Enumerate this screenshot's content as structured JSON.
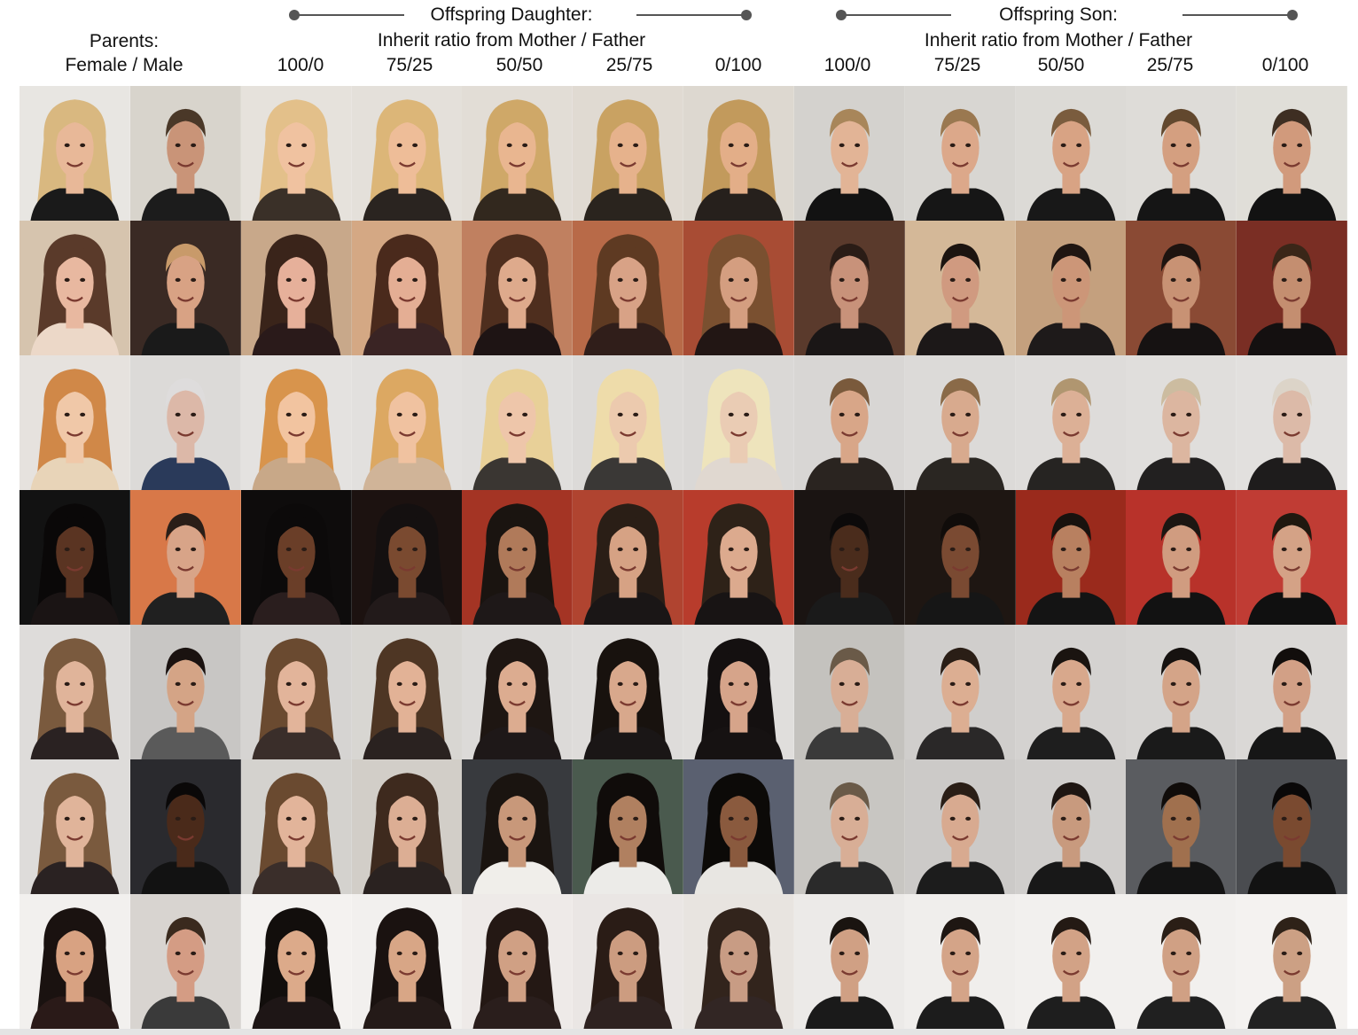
{
  "header": {
    "parents_label": "Parents:",
    "parents_sub": "Female / Male",
    "daughter_title": "Offspring Daughter:",
    "son_title": "Offspring Son:",
    "inherit_label": "Inherit ratio from Mother / Father",
    "ratios": [
      "100/0",
      "75/25",
      "50/50",
      "25/75",
      "0/100"
    ]
  },
  "columns": [
    "Mother",
    "Father",
    "100/0",
    "75/25",
    "50/50",
    "25/75",
    "0/100",
    "100/0",
    "75/25",
    "50/50",
    "25/75",
    "0/100"
  ],
  "rows": [
    {
      "bg": [
        "#e8e6e2",
        "#d8d4cc",
        "#e6e2dc",
        "#e4e0da",
        "#e2ddd6",
        "#e0dad2",
        "#ddd8d0",
        "#d4d2ce",
        "#d8d6d2",
        "#dcdad6",
        "#dedcd8",
        "#e0ded8"
      ],
      "skin": [
        "#e8b898",
        "#c99478",
        "#f0c2a0",
        "#eebd98",
        "#e9b690",
        "#e6b28c",
        "#e3ae88",
        "#e2b496",
        "#dca88a",
        "#d8a384",
        "#d49f80",
        "#d19a7c"
      ],
      "hair": [
        "#d9b880",
        "#4a3828",
        "#e3c08a",
        "#dcb678",
        "#cfa868",
        "#c9a262",
        "#c29a5c",
        "#a8865a",
        "#9a7850",
        "#7a5c3e",
        "#62482e",
        "#3e2e22"
      ],
      "cloth": [
        "#1a1a1a",
        "#1c1c1c",
        "#3a3028",
        "#2a2420",
        "#32281e",
        "#2a241e",
        "#26201c",
        "#121212",
        "#161616",
        "#181818",
        "#151515",
        "#121212"
      ]
    },
    {
      "bg": [
        "#d6c4ae",
        "#3a2a24",
        "#c8a88a",
        "#d4a884",
        "#c08060",
        "#b86a48",
        "#a84c34",
        "#5a3a2c",
        "#d4b898",
        "#c4a07e",
        "#8a4a34",
        "#7a2e24"
      ],
      "skin": [
        "#e8b8a0",
        "#d8a284",
        "#e6b09a",
        "#e4ae94",
        "#deaa8c",
        "#d8a286",
        "#d49e80",
        "#c8927a",
        "#d09a80",
        "#cc9678",
        "#c89274",
        "#c48e70"
      ],
      "hair": [
        "#5a3a2a",
        "#c89a6a",
        "#3a241a",
        "#4a2a1c",
        "#4e2e1e",
        "#5e3a22",
        "#7a5030",
        "#2a1c16",
        "#1c1410",
        "#201612",
        "#1e1410",
        "#3a2618"
      ],
      "cloth": [
        "#ecd8c8",
        "#1a1a1a",
        "#2a1a1a",
        "#3a2424",
        "#1e1414",
        "#301e1a",
        "#221614",
        "#1a1616",
        "#1c1818",
        "#1e1a1a",
        "#161212",
        "#141010"
      ]
    },
    {
      "bg": [
        "#e6e2de",
        "#dcdad8",
        "#e4e2e0",
        "#e2e0de",
        "#e0dedc",
        "#dcdad8",
        "#dad8d6",
        "#d8d6d4",
        "#dcdad8",
        "#dedcda",
        "#e0dedc",
        "#e2e0de"
      ],
      "skin": [
        "#f0c8a8",
        "#dcb8a8",
        "#f2c4a0",
        "#f0c2a0",
        "#eec6aa",
        "#eccaae",
        "#eaccb4",
        "#d8a688",
        "#d8aa8e",
        "#dcb096",
        "#dcb6a0",
        "#dcbaa8"
      ],
      "hair": [
        "#d08848",
        "#dedcdc",
        "#d8944c",
        "#dca862",
        "#e8d098",
        "#eedcaa",
        "#eee4bc",
        "#7a5a3c",
        "#8a6a48",
        "#b09670",
        "#ccbca0",
        "#dcd4c8"
      ],
      "cloth": [
        "#e8d4b8",
        "#2a3a5a",
        "#c8a888",
        "#d0b498",
        "#3a3632",
        "#3a3836",
        "#e0d8d0",
        "#2a2420",
        "#2a2622",
        "#262422",
        "#222020",
        "#1e1c1c"
      ]
    },
    {
      "bg": [
        "#121212",
        "#d87848",
        "#0e0c0c",
        "#1c1210",
        "#a43424",
        "#b04430",
        "#b83c2c",
        "#1a1412",
        "#1e1612",
        "#9a2a1c",
        "#b8322a",
        "#c03c34"
      ],
      "skin": [
        "#5a3422",
        "#d8a488",
        "#6a3e28",
        "#7a4a30",
        "#b07a5a",
        "#d6a284",
        "#dcaa8e",
        "#4a2c1c",
        "#7a4a32",
        "#b88060",
        "#d09c80",
        "#d4a286"
      ],
      "hair": [
        "#0a0808",
        "#2a1e18",
        "#0c0a0a",
        "#141010",
        "#1a1410",
        "#2a1e16",
        "#2e2218",
        "#0c0a0a",
        "#100c0a",
        "#18120e",
        "#1c1612",
        "#20180f"
      ],
      "cloth": [
        "#1a1414",
        "#202020",
        "#2a1e1e",
        "#221a1a",
        "#1e1818",
        "#1a1616",
        "#181414",
        "#1a1a1a",
        "#161616",
        "#141414",
        "#121212",
        "#101010"
      ]
    },
    {
      "bg": [
        "#dedcda",
        "#c8c6c4",
        "#d6d4d2",
        "#d8d6d2",
        "#dcdad8",
        "#dedcda",
        "#e0dedc",
        "#c4c2be",
        "#d0cecc",
        "#d4d2d0",
        "#d6d4d2",
        "#dad8d6"
      ],
      "skin": [
        "#e0b49a",
        "#d4a486",
        "#e2b49a",
        "#e2b296",
        "#dcac90",
        "#d8a88c",
        "#d6a48a",
        "#d8ae96",
        "#dcae92",
        "#d8a88c",
        "#d4a488",
        "#d2a086"
      ],
      "hair": [
        "#7a5a3e",
        "#1a1210",
        "#6a4a30",
        "#4e3624",
        "#1e1612",
        "#18120e",
        "#141010",
        "#6a5a48",
        "#2a1e16",
        "#1a1410",
        "#161210",
        "#120e0c"
      ],
      "cloth": [
        "#2a2222",
        "#5a5a5a",
        "#3a2e2a",
        "#2a2220",
        "#1e1818",
        "#1a1616",
        "#161212",
        "#3a3a3a",
        "#2a2828",
        "#1e1e1e",
        "#1a1a1a",
        "#161616"
      ]
    },
    {
      "bg": [
        "#dedcda",
        "#2a2a2e",
        "#d4d2ce",
        "#d2cec8",
        "#383a3e",
        "#4a5a4e",
        "#5a6070",
        "#c8c6c2",
        "#cccac8",
        "#d0cecc",
        "#5a5c60",
        "#4a4c50"
      ],
      "skin": [
        "#e0b49a",
        "#4a2a1a",
        "#e2b49a",
        "#dcae94",
        "#c8987a",
        "#b08060",
        "#8a5a3e",
        "#d8ae96",
        "#d8aa90",
        "#c89a7e",
        "#a0704e",
        "#7a4a30"
      ],
      "hair": [
        "#7a5a3e",
        "#0a0808",
        "#6a4a30",
        "#3e2a1e",
        "#1a1410",
        "#100c0a",
        "#0c0a08",
        "#6a5a48",
        "#2a1e16",
        "#1e1612",
        "#100c0a",
        "#0a0808"
      ],
      "cloth": [
        "#2a2222",
        "#121212",
        "#3a2e2a",
        "#2a2220",
        "#f0eeea",
        "#ecebe8",
        "#e8e6e2",
        "#2a2a2a",
        "#1c1c1c",
        "#181818",
        "#141414",
        "#121212"
      ]
    },
    {
      "bg": [
        "#f2f0ee",
        "#d8d4d0",
        "#f4f2f0",
        "#f2f0ee",
        "#eeeae8",
        "#eae6e4",
        "#e8e4e0",
        "#eceae8",
        "#f0eeec",
        "#f2f0ee",
        "#f2f0ee",
        "#f4f2f0"
      ],
      "skin": [
        "#d8a282",
        "#d49c84",
        "#dcaa8a",
        "#d8a686",
        "#d0a084",
        "#cc9c80",
        "#c89c84",
        "#d0a084",
        "#d4a488",
        "#d2a286",
        "#d0a084",
        "#cca084"
      ],
      "hair": [
        "#1a1210",
        "#3a2a1e",
        "#120e0c",
        "#1a1210",
        "#241814",
        "#2a1c16",
        "#32241c",
        "#1a1410",
        "#1e1612",
        "#241a14",
        "#2a1e16",
        "#2e2218"
      ],
      "cloth": [
        "#2a1a18",
        "#3a3a3a",
        "#1e1616",
        "#241a18",
        "#2a1e1c",
        "#2e2220",
        "#322624",
        "#1a1a1a",
        "#1c1c1c",
        "#1e1e1e",
        "#202020",
        "#222222"
      ]
    }
  ]
}
